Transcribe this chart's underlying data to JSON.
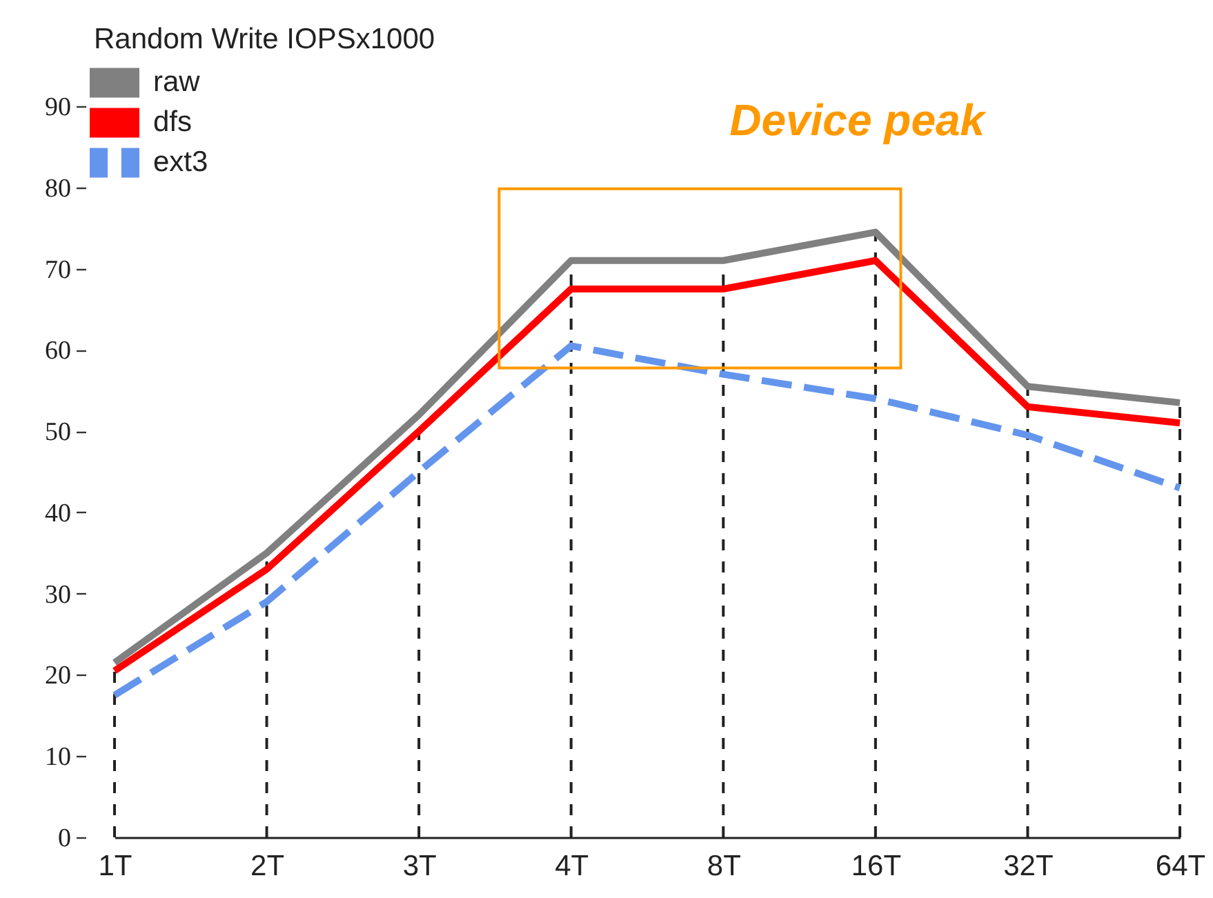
{
  "chart_data": {
    "type": "line",
    "legend_title": "Random Write IOPSx1000",
    "categories": [
      "1T",
      "2T",
      "3T",
      "4T",
      "8T",
      "16T",
      "32T",
      "64T"
    ],
    "series": [
      {
        "name": "raw",
        "color": "#808080",
        "line_style": "solid",
        "values": [
          21.5,
          35,
          52,
          71,
          71,
          74.5,
          55.5,
          53.5
        ]
      },
      {
        "name": "dfs",
        "color": "#ff0000",
        "line_style": "solid",
        "values": [
          20.5,
          33,
          50,
          67.5,
          67.5,
          71,
          53,
          51
        ]
      },
      {
        "name": "ext3",
        "color": "#6495ed",
        "line_style": "dashed",
        "values": [
          17.5,
          29,
          45,
          60.5,
          57,
          54,
          49.5,
          43
        ]
      }
    ],
    "ylim": [
      0,
      90
    ],
    "yticks": [
      0,
      10,
      20,
      30,
      40,
      50,
      60,
      70,
      80,
      90
    ],
    "legend": "top left",
    "ref_lines": [
      {
        "axis": "x",
        "value": "1T",
        "color": "#222222",
        "line_style": "dashed"
      },
      {
        "axis": "x",
        "value": "2T",
        "color": "#222222",
        "line_style": "dashed"
      },
      {
        "axis": "x",
        "value": "3T",
        "color": "#222222",
        "line_style": "dashed"
      },
      {
        "axis": "x",
        "value": "4T",
        "color": "#222222",
        "line_style": "dashed"
      },
      {
        "axis": "x",
        "value": "8T",
        "color": "#222222",
        "line_style": "dashed"
      },
      {
        "axis": "x",
        "value": "16T",
        "color": "#222222",
        "line_style": "dashed"
      },
      {
        "axis": "x",
        "value": "32T",
        "color": "#222222",
        "line_style": "dashed"
      },
      {
        "axis": "x",
        "value": "64T",
        "color": "#222222",
        "line_style": "dashed"
      }
    ],
    "annotations": [
      "Device peak"
    ]
  }
}
